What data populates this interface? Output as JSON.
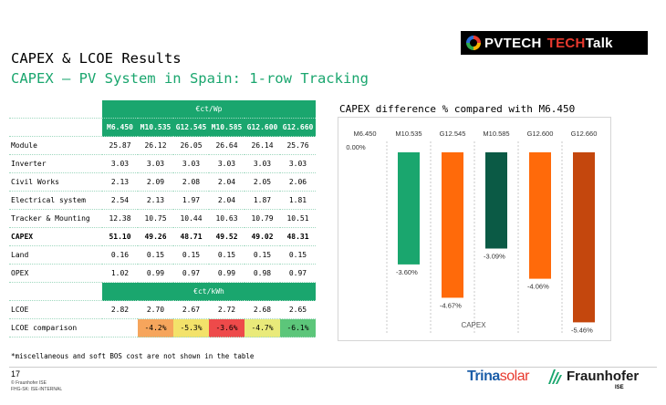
{
  "header": {
    "title": "CAPEX & LCOE Results",
    "subtitle": "CAPEX – PV System in Spain: 1-row Tracking"
  },
  "logo": {
    "p1": "PVTECH",
    "p2": "TECH",
    "p3": "Talk"
  },
  "table": {
    "unit_header_capex": "€ct/Wp",
    "unit_header_lcoe": "€ct/kWh",
    "columns": [
      "M6.450",
      "M10.535",
      "G12.545",
      "M10.585",
      "G12.600",
      "G12.660"
    ],
    "rows": [
      {
        "label": "Module",
        "values": [
          "25.87",
          "26.12",
          "26.05",
          "26.64",
          "26.14",
          "25.76"
        ]
      },
      {
        "label": "Inverter",
        "values": [
          "3.03",
          "3.03",
          "3.03",
          "3.03",
          "3.03",
          "3.03"
        ]
      },
      {
        "label": "Civil Works",
        "values": [
          "2.13",
          "2.09",
          "2.08",
          "2.04",
          "2.05",
          "2.06"
        ]
      },
      {
        "label": "Electrical system",
        "values": [
          "2.54",
          "2.13",
          "1.97",
          "2.04",
          "1.87",
          "1.81"
        ]
      },
      {
        "label": "Tracker & Mounting",
        "values": [
          "12.38",
          "10.75",
          "10.44",
          "10.63",
          "10.79",
          "10.51"
        ]
      },
      {
        "label": "CAPEX",
        "values": [
          "51.10",
          "49.26",
          "48.71",
          "49.52",
          "49.02",
          "48.31"
        ]
      },
      {
        "label": "Land",
        "values": [
          "0.16",
          "0.15",
          "0.15",
          "0.15",
          "0.15",
          "0.15"
        ]
      },
      {
        "label": "OPEX",
        "values": [
          "1.02",
          "0.99",
          "0.97",
          "0.99",
          "0.98",
          "0.97"
        ]
      }
    ],
    "lcoe": {
      "label": "LCOE",
      "values": [
        "2.82",
        "2.70",
        "2.67",
        "2.72",
        "2.68",
        "2.65"
      ]
    },
    "lcoe_comparison": {
      "label": "LCOE comparison",
      "values": [
        "",
        "-4.2%",
        "-5.3%",
        "-3.6%",
        "-4.7%",
        "-6.1%"
      ]
    }
  },
  "footnote": "*miscellaneous and soft BOS cost are not shown in the table",
  "footer": {
    "page_number": "17",
    "copyright": "© Fraunhofer ISE",
    "classification": "FHG-SK: ISE-INTERNAL",
    "trina_1": "Trina",
    "trina_2": "solar",
    "fraunhofer": "Fraunhofer",
    "ise": "ISE"
  },
  "chart_title": "CAPEX difference % compared with M6.450",
  "chart_data": {
    "type": "bar",
    "categories": [
      "M6.450",
      "M10.535",
      "G12.545",
      "M10.585",
      "G12.600",
      "G12.660"
    ],
    "values": [
      0.0,
      -3.6,
      -4.67,
      -3.09,
      -4.06,
      -5.46
    ],
    "data_labels": [
      "0.00%",
      "-3.60%",
      "-4.67%",
      "-3.09%",
      "-4.06%",
      "-5.46%"
    ],
    "xlabel": "CAPEX",
    "ylim": [
      -5.8,
      0
    ],
    "colors": [
      "#1aa66e",
      "#1aa66e",
      "#ff6a0a",
      "#0b5a45",
      "#ff6a0a",
      "#c4470d"
    ]
  }
}
